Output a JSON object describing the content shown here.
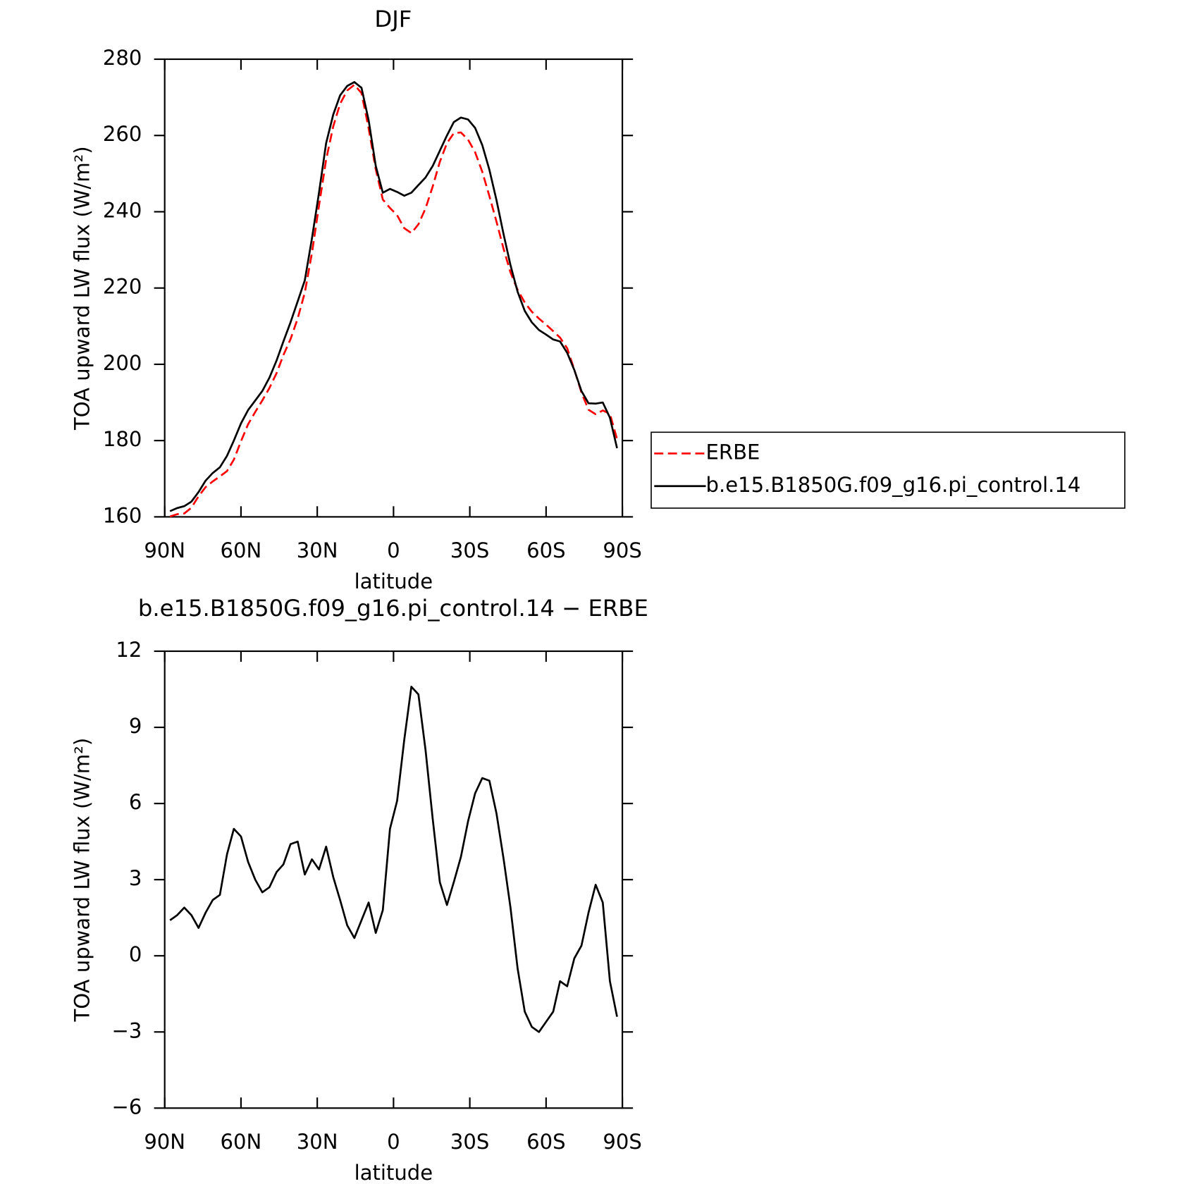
{
  "chart_data": [
    {
      "type": "line",
      "title": "DJF",
      "xlabel": "latitude",
      "ylabel": "TOA upward LW flux (W/m²)",
      "x": [
        87.9,
        85.1,
        82.3,
        79.5,
        76.7,
        73.9,
        71.1,
        68.3,
        65.5,
        62.8,
        60.0,
        57.2,
        54.4,
        51.6,
        48.8,
        46.0,
        43.3,
        40.5,
        37.7,
        34.9,
        32.1,
        29.3,
        26.5,
        23.7,
        21.0,
        18.2,
        15.4,
        12.6,
        9.8,
        7.0,
        4.2,
        1.4,
        -1.4,
        -4.2,
        -7.0,
        -9.8,
        -12.6,
        -15.4,
        -18.2,
        -21.0,
        -23.7,
        -26.5,
        -29.3,
        -32.1,
        -34.9,
        -37.7,
        -40.5,
        -43.3,
        -46.0,
        -48.8,
        -51.6,
        -54.4,
        -57.2,
        -60.0,
        -62.8,
        -65.5,
        -68.3,
        -71.1,
        -73.9,
        -76.7,
        -79.5,
        -82.3,
        -85.1,
        -87.9
      ],
      "series": [
        {
          "name": "ERBE",
          "color": "#ff0000",
          "dashed": true,
          "values": [
            160.1,
            160.7,
            160.9,
            162.4,
            165.4,
            167.8,
            169.3,
            170.6,
            172.0,
            175.0,
            179.8,
            184.3,
            187.5,
            190.5,
            193.8,
            197.7,
            202.4,
            206.6,
            212.0,
            218.8,
            229.2,
            241.6,
            253.7,
            262.4,
            268.3,
            271.8,
            273.3,
            271.1,
            261.9,
            251.1,
            243.2,
            241.0,
            239.1,
            235.7,
            234.4,
            236.7,
            240.9,
            246.6,
            253.1,
            258.0,
            260.6,
            260.8,
            258.9,
            255.6,
            250.5,
            244.1,
            237.4,
            230.2,
            224.1,
            219.5,
            216.2,
            213.8,
            212.0,
            210.4,
            208.7,
            207.0,
            204.2,
            198.6,
            192.6,
            188.1,
            186.9,
            187.9,
            187.0,
            180.4
          ]
        },
        {
          "name": "b.e15.B1850G.f09_g16.pi_control.14",
          "color": "#000000",
          "dashed": false,
          "values": [
            161.5,
            162.3,
            162.8,
            164.0,
            166.5,
            169.5,
            171.5,
            173.0,
            176.0,
            180.0,
            184.5,
            188.0,
            190.5,
            193.0,
            196.5,
            201.0,
            206.0,
            211.0,
            216.5,
            222.0,
            233.0,
            245.0,
            258.0,
            265.5,
            270.5,
            273.0,
            274.0,
            272.5,
            264.0,
            252.0,
            245.0,
            246.0,
            245.2,
            244.2,
            245.0,
            247.0,
            249.0,
            252.0,
            256.0,
            260.0,
            263.5,
            264.7,
            264.2,
            262.0,
            257.5,
            251.0,
            243.0,
            234.0,
            226.0,
            219.0,
            214.0,
            211.0,
            209.0,
            207.8,
            206.5,
            206.0,
            203.0,
            198.5,
            193.0,
            189.8,
            189.7,
            190.0,
            186.0,
            178.0
          ]
        }
      ],
      "xlim": [
        90,
        -90
      ],
      "xticks": [
        {
          "value": 90,
          "label": "90N"
        },
        {
          "value": 60,
          "label": "60N"
        },
        {
          "value": 30,
          "label": "30N"
        },
        0,
        {
          "value": -30,
          "label": "30S"
        },
        {
          "value": -60,
          "label": "60S"
        },
        {
          "value": -90,
          "label": "90S"
        }
      ],
      "ylim": [
        160,
        280
      ],
      "yticks": [
        160,
        180,
        200,
        220,
        240,
        260,
        280
      ],
      "legend": "right"
    },
    {
      "type": "line",
      "title": "b.e15.B1850G.f09_g16.pi_control.14 − ERBE",
      "xlabel": "latitude",
      "ylabel": "TOA upward LW flux (W/m²)",
      "x": [
        87.9,
        85.1,
        82.3,
        79.5,
        76.7,
        73.9,
        71.1,
        68.3,
        65.5,
        62.8,
        60.0,
        57.2,
        54.4,
        51.6,
        48.8,
        46.0,
        43.3,
        40.5,
        37.7,
        34.9,
        32.1,
        29.3,
        26.5,
        23.7,
        21.0,
        18.2,
        15.4,
        12.6,
        9.8,
        7.0,
        4.2,
        1.4,
        -1.4,
        -4.2,
        -7.0,
        -9.8,
        -12.6,
        -15.4,
        -18.2,
        -21.0,
        -23.7,
        -26.5,
        -29.3,
        -32.1,
        -34.9,
        -37.7,
        -40.5,
        -43.3,
        -46.0,
        -48.8,
        -51.6,
        -54.4,
        -57.2,
        -60.0,
        -62.8,
        -65.5,
        -68.3,
        -71.1,
        -73.9,
        -76.7,
        -79.5,
        -82.3,
        -85.1,
        -87.9
      ],
      "series": [
        {
          "color": "#000000",
          "dashed": false,
          "values": [
            1.4,
            1.6,
            1.9,
            1.6,
            1.1,
            1.7,
            2.2,
            2.4,
            4.0,
            5.0,
            4.7,
            3.7,
            3.0,
            2.5,
            2.7,
            3.3,
            3.6,
            4.4,
            4.5,
            3.2,
            3.8,
            3.4,
            4.3,
            3.1,
            2.2,
            1.2,
            0.7,
            1.4,
            2.1,
            0.9,
            1.8,
            5.0,
            6.1,
            8.5,
            10.6,
            10.3,
            8.1,
            5.4,
            2.9,
            2.0,
            2.9,
            3.9,
            5.3,
            6.4,
            7.0,
            6.9,
            5.6,
            3.8,
            1.9,
            -0.5,
            -2.2,
            -2.8,
            -3.0,
            -2.6,
            -2.2,
            -1.0,
            -1.2,
            -0.1,
            0.4,
            1.7,
            2.8,
            2.1,
            -1.0,
            -2.4
          ]
        }
      ],
      "xlim": [
        90,
        -90
      ],
      "xticks": [
        {
          "value": 90,
          "label": "90N"
        },
        {
          "value": 60,
          "label": "60N"
        },
        {
          "value": 30,
          "label": "30N"
        },
        0,
        {
          "value": -30,
          "label": "30S"
        },
        {
          "value": -60,
          "label": "60S"
        },
        {
          "value": -90,
          "label": "90S"
        }
      ],
      "ylim": [
        -6,
        12
      ],
      "yticks": [
        {
          "value": -6,
          "label": "−6"
        },
        {
          "value": -3,
          "label": "−3"
        },
        0,
        3,
        6,
        9,
        12
      ]
    }
  ]
}
